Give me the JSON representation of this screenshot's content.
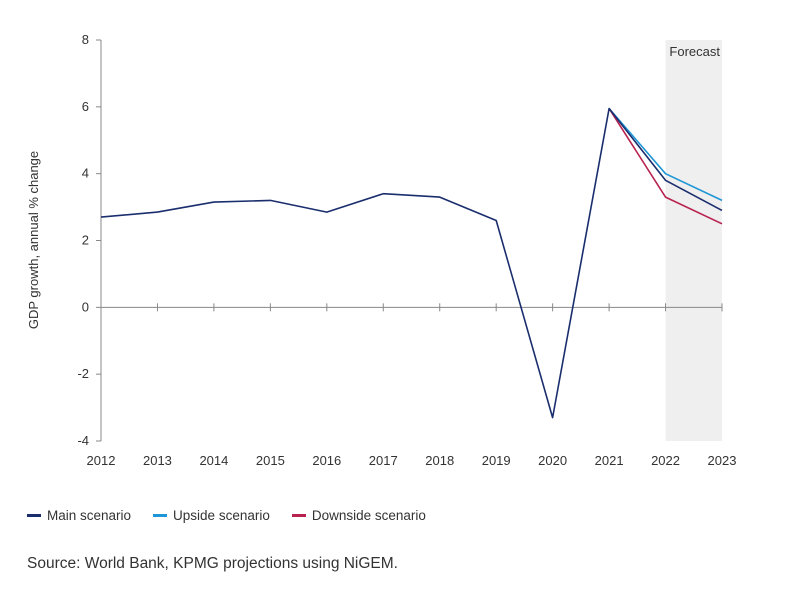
{
  "chart_data": {
    "type": "line",
    "ylabel": "GDP growth, annual % change",
    "xlabel": "",
    "x": [
      "2012",
      "2013",
      "2014",
      "2015",
      "2016",
      "2017",
      "2018",
      "2019",
      "2020",
      "2021",
      "2022",
      "2023"
    ],
    "ylim": [
      -4,
      8
    ],
    "yticks": [
      -4,
      -2,
      0,
      2,
      4,
      6,
      8
    ],
    "forecast_label": "Forecast",
    "forecast_range": [
      "2022",
      "2023"
    ],
    "series": [
      {
        "name": "Main scenario",
        "color": "#1a2e6e",
        "values": [
          2.7,
          2.85,
          3.15,
          3.2,
          2.85,
          3.4,
          3.3,
          2.6,
          -3.3,
          5.95,
          3.8,
          2.9
        ]
      },
      {
        "name": "Upside scenario",
        "color": "#1e96d6",
        "values": [
          null,
          null,
          null,
          null,
          null,
          null,
          null,
          null,
          null,
          5.95,
          4.0,
          3.2
        ]
      },
      {
        "name": "Downside scenario",
        "color": "#b8224e",
        "values": [
          null,
          null,
          null,
          null,
          null,
          null,
          null,
          null,
          null,
          5.95,
          3.3,
          2.5
        ]
      }
    ],
    "grid": false,
    "legend_position": "bottom-left",
    "source": "Source: World Bank, KPMG projections using NiGEM."
  }
}
